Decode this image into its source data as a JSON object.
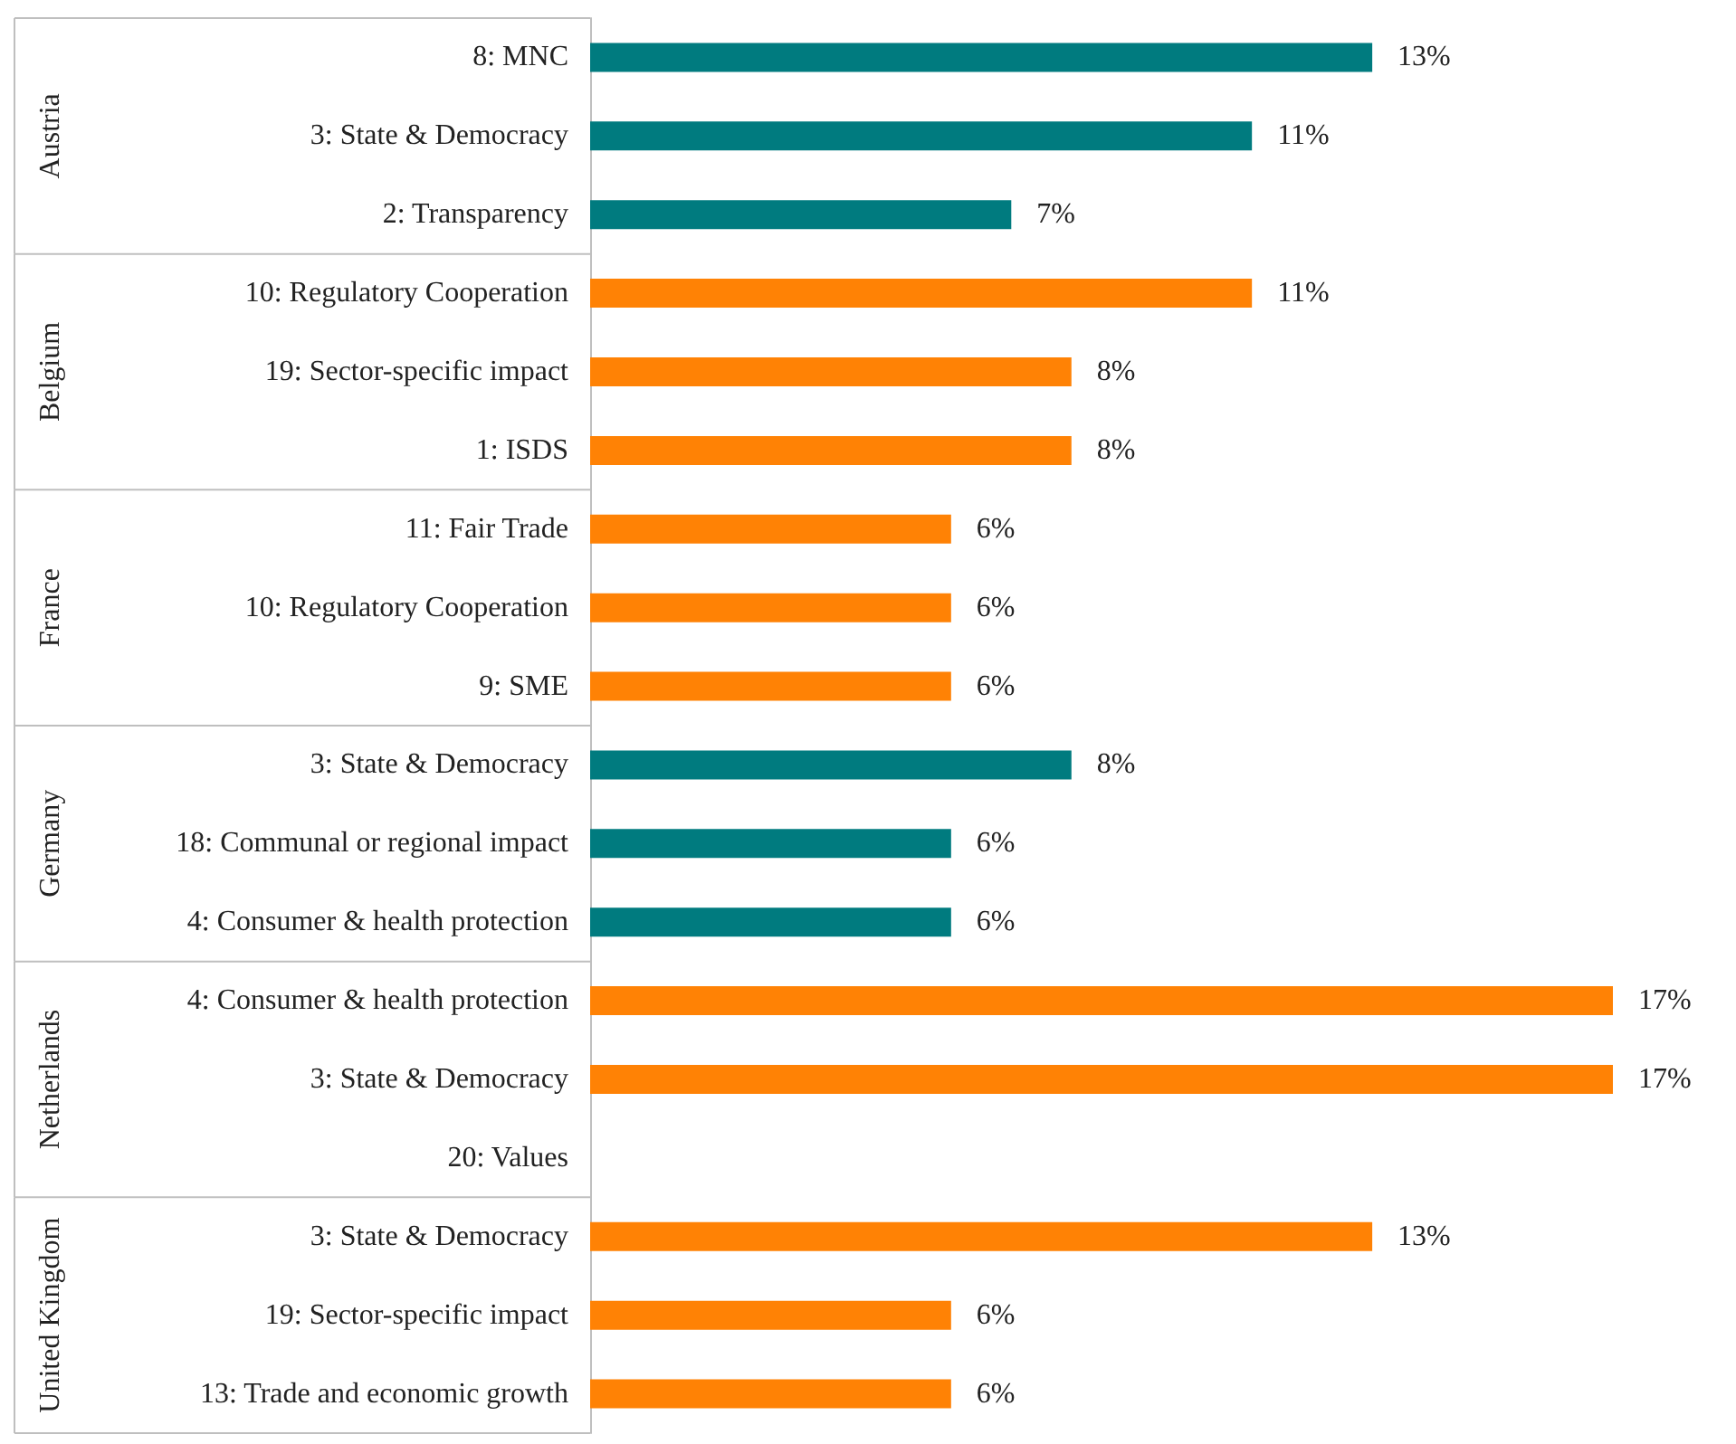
{
  "chart_data": {
    "type": "bar",
    "orientation": "horizontal",
    "categories": [
      "8: MNC",
      "3: State & Democracy",
      "2: Transparency",
      "10: Regulatory Cooperation",
      "19: Sector-specific impact",
      "1: ISDS",
      "11: Fair Trade",
      "10: Regulatory Cooperation",
      "9: SME",
      "3: State & Democracy",
      "18: Communal or regional impact",
      "4: Consumer & health protection",
      "4: Consumer & health protection",
      "3: State & Democracy",
      "20: Values",
      "3: State & Democracy",
      "19: Sector-specific impact",
      "13: Trade and economic growth"
    ],
    "values": [
      13,
      11,
      7,
      11,
      8,
      8,
      6,
      6,
      6,
      8,
      6,
      6,
      17,
      17,
      null,
      13,
      6,
      6
    ],
    "value_labels": [
      "13%",
      "11%",
      "7%",
      "11%",
      "8%",
      "8%",
      "6%",
      "6%",
      "6%",
      "8%",
      "6%",
      "6%",
      "17%",
      "17%",
      null,
      "13%",
      "6%",
      "6%"
    ],
    "colors": [
      "#007b7f",
      "#007b7f",
      "#007b7f",
      "#ff8205",
      "#ff8205",
      "#ff8205",
      "#ff8205",
      "#ff8205",
      "#ff8205",
      "#007b7f",
      "#007b7f",
      "#007b7f",
      "#ff8205",
      "#ff8205",
      "#ff8205",
      "#ff8205",
      "#ff8205",
      "#ff8205"
    ],
    "annotations": [
      "Austria",
      "Belgium",
      "France",
      "Germany",
      "Netherlands",
      "United Kingdom"
    ],
    "grid": false
  }
}
